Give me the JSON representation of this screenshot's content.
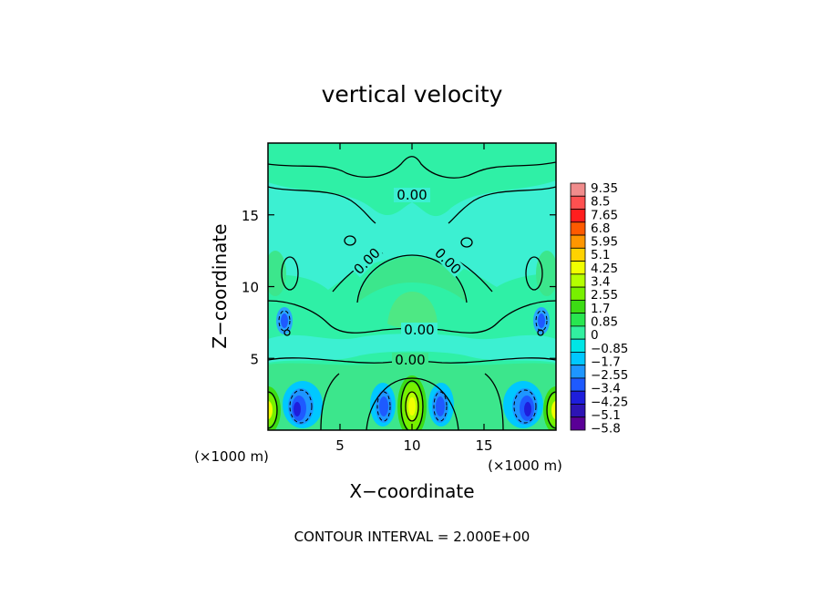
{
  "chart_data": {
    "type": "heatmap",
    "title": "vertical velocity",
    "xlabel": "X−coordinate",
    "ylabel": "Z−coordinate",
    "x_unit_left": "(×1000 m)",
    "x_unit_right": "(×1000 m)",
    "xlim": [
      0,
      20
    ],
    "ylim": [
      0,
      20
    ],
    "x_ticks": [
      5,
      10,
      15
    ],
    "y_ticks": [
      5,
      10,
      15
    ],
    "contour_interval_text": "CONTOUR INTERVAL = 2.000E+00",
    "contour_labels": [
      "0.00",
      "0.00",
      "0.00",
      "0.00",
      "0.00"
    ],
    "colorbar": {
      "labels": [
        "9.35",
        "8.5",
        "7.65",
        "6.8",
        "5.95",
        "5.1",
        "4.25",
        "3.4",
        "2.55",
        "1.7",
        "0.85",
        "0",
        "−0.85",
        "−1.7",
        "−2.55",
        "−3.4",
        "−4.25",
        "−5.1",
        "−5.8"
      ],
      "colors": [
        "#f08c8c",
        "#ff5050",
        "#ff1e1e",
        "#ff5a00",
        "#ff9600",
        "#ffd200",
        "#f0ff00",
        "#b4ff00",
        "#78f000",
        "#3cdc14",
        "#28e650",
        "#32f0a0",
        "#00e6e6",
        "#00c8ff",
        "#1e96ff",
        "#1e5aff",
        "#1e1edc",
        "#2d14b4",
        "#5a0096"
      ]
    },
    "grid": false,
    "legend": "colorbar-right"
  }
}
